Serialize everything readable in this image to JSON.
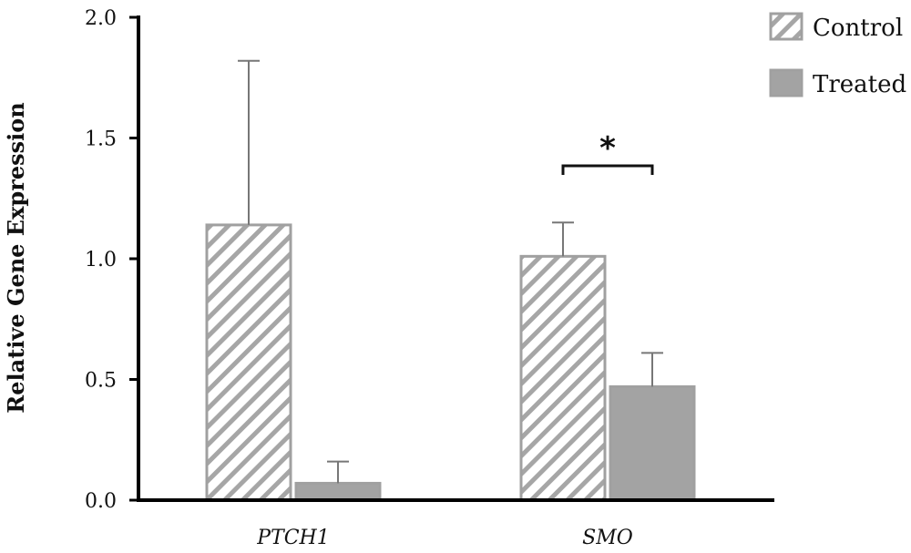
{
  "chart_data": {
    "type": "bar",
    "title": "",
    "xlabel": "",
    "ylabel": "Relative Gene Expression",
    "ylim": [
      0,
      2.0
    ],
    "yticks": [
      "0.0",
      "0.5",
      "1.0",
      "1.5",
      "2.0"
    ],
    "categories": [
      "PTCH1",
      "SMO"
    ],
    "series": [
      {
        "name": "Control",
        "values": [
          1.14,
          1.01
        ],
        "errors": [
          0.68,
          0.14
        ],
        "pattern": "hatched",
        "color": "#9e9e9e"
      },
      {
        "name": "Treated",
        "values": [
          0.07,
          0.47
        ],
        "errors": [
          0.09,
          0.14
        ],
        "pattern": "solid",
        "color": "#a3a3a3"
      }
    ],
    "annotations": [
      {
        "text": "*",
        "category": "SMO",
        "type": "significance-bracket"
      }
    ],
    "legend": {
      "placement": "top-right"
    },
    "grid": false
  }
}
